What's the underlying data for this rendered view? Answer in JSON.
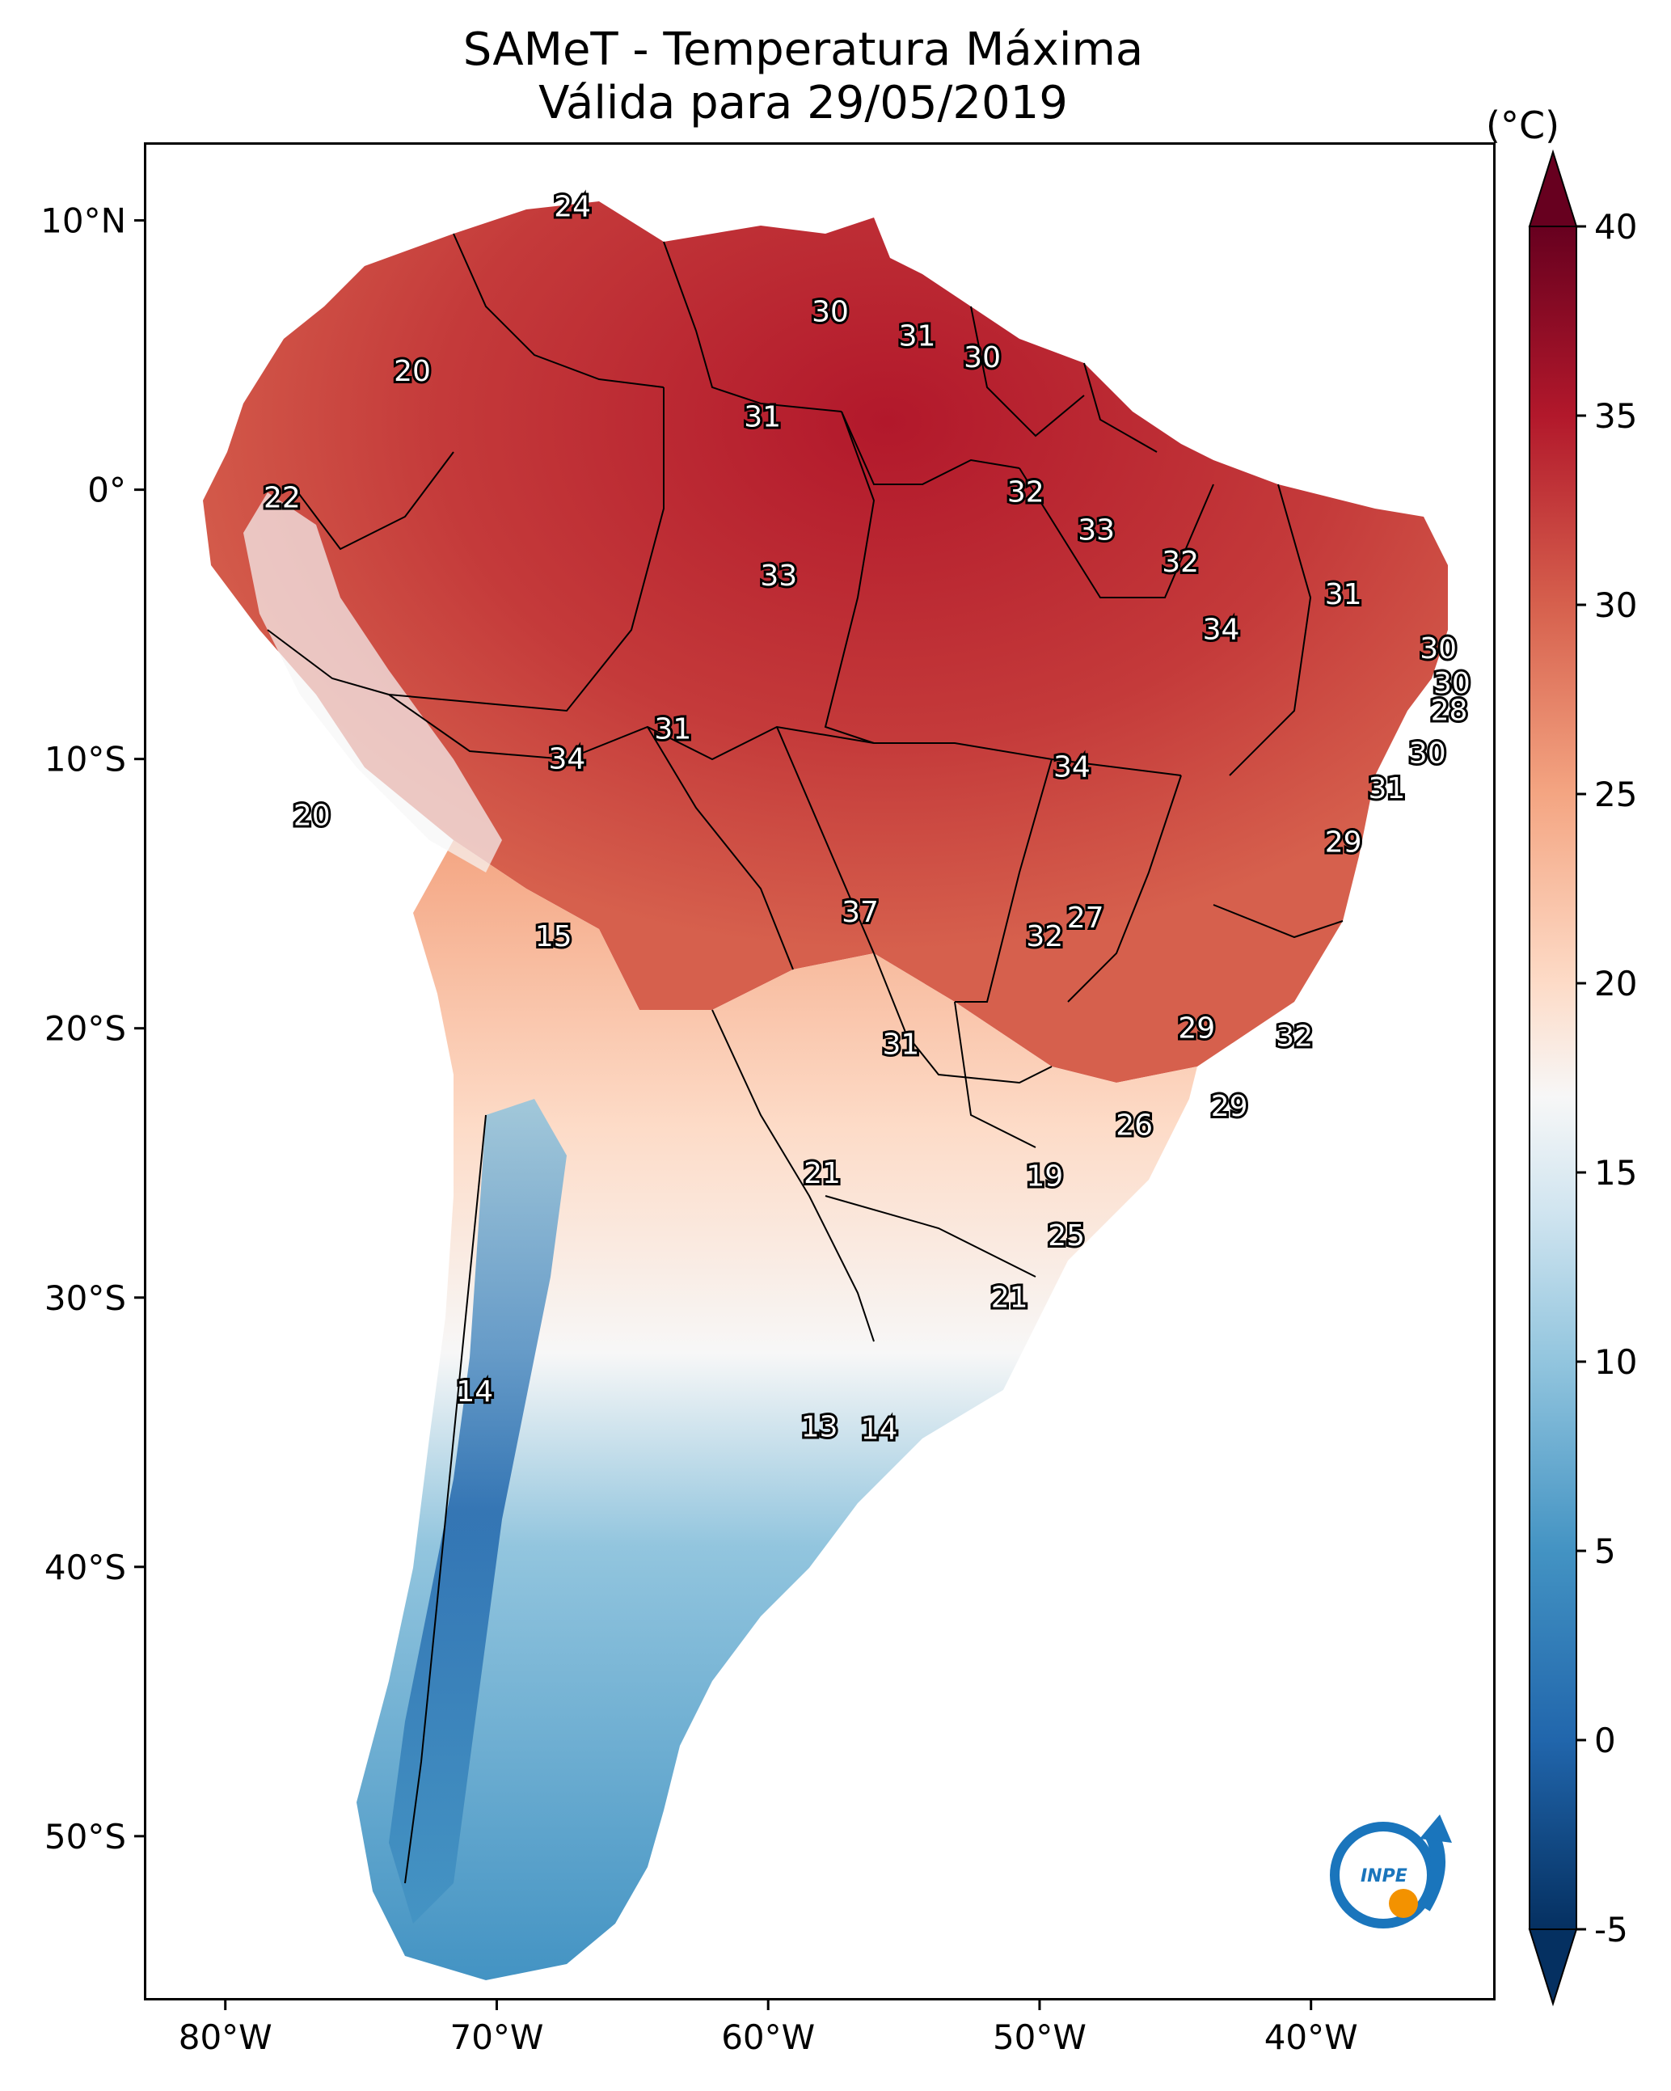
{
  "title": {
    "line1": "SAMeT - Temperatura Máxima",
    "line2": "Válida para 29/05/2019"
  },
  "map": {
    "lon_ticks": [
      "80°W",
      "70°W",
      "60°W",
      "50°W",
      "40°W"
    ],
    "lat_ticks": [
      "10°N",
      "0°",
      "10°S",
      "20°S",
      "30°S",
      "40°S",
      "50°S"
    ],
    "logo_text": "INPE",
    "station_labels": [
      {
        "value": "24",
        "lon": -67.3,
        "lat": 10.6
      },
      {
        "value": "30",
        "lon": -57.8,
        "lat": 6.7
      },
      {
        "value": "31",
        "lon": -54.6,
        "lat": 5.8
      },
      {
        "value": "30",
        "lon": -52.2,
        "lat": 5.0
      },
      {
        "value": "20",
        "lon": -73.2,
        "lat": 4.5
      },
      {
        "value": "31",
        "lon": -60.3,
        "lat": 2.8
      },
      {
        "value": "32",
        "lon": -50.6,
        "lat": 0.0
      },
      {
        "value": "22",
        "lon": -78.0,
        "lat": -0.2
      },
      {
        "value": "33",
        "lon": -48.0,
        "lat": -1.4
      },
      {
        "value": "32",
        "lon": -44.9,
        "lat": -2.6
      },
      {
        "value": "33",
        "lon": -59.7,
        "lat": -3.1
      },
      {
        "value": "31",
        "lon": -38.9,
        "lat": -3.8
      },
      {
        "value": "34",
        "lon": -43.4,
        "lat": -5.1
      },
      {
        "value": "30",
        "lon": -35.4,
        "lat": -5.8
      },
      {
        "value": "30",
        "lon": -34.9,
        "lat": -7.1
      },
      {
        "value": "28",
        "lon": -35.0,
        "lat": -8.1
      },
      {
        "value": "31",
        "lon": -63.6,
        "lat": -8.8
      },
      {
        "value": "30",
        "lon": -35.8,
        "lat": -9.7
      },
      {
        "value": "34",
        "lon": -67.5,
        "lat": -9.9
      },
      {
        "value": "34",
        "lon": -48.9,
        "lat": -10.2
      },
      {
        "value": "31",
        "lon": -37.3,
        "lat": -11.0
      },
      {
        "value": "20",
        "lon": -76.9,
        "lat": -12.0
      },
      {
        "value": "29",
        "lon": -38.9,
        "lat": -13.0
      },
      {
        "value": "37",
        "lon": -56.7,
        "lat": -15.6
      },
      {
        "value": "27",
        "lon": -48.4,
        "lat": -15.8
      },
      {
        "value": "15",
        "lon": -68.0,
        "lat": -16.5
      },
      {
        "value": "32",
        "lon": -49.9,
        "lat": -16.5
      },
      {
        "value": "29",
        "lon": -44.3,
        "lat": -19.9
      },
      {
        "value": "32",
        "lon": -40.7,
        "lat": -20.2
      },
      {
        "value": "31",
        "lon": -55.2,
        "lat": -20.5
      },
      {
        "value": "29",
        "lon": -43.1,
        "lat": -22.8
      },
      {
        "value": "26",
        "lon": -46.6,
        "lat": -23.5
      },
      {
        "value": "21",
        "lon": -58.1,
        "lat": -25.3
      },
      {
        "value": "19",
        "lon": -49.9,
        "lat": -25.4
      },
      {
        "value": "25",
        "lon": -49.1,
        "lat": -27.6
      },
      {
        "value": "21",
        "lon": -51.2,
        "lat": -29.9
      },
      {
        "value": "14",
        "lon": -70.9,
        "lat": -33.4
      },
      {
        "value": "13",
        "lon": -58.2,
        "lat": -34.7
      },
      {
        "value": "14",
        "lon": -56.0,
        "lat": -34.8
      }
    ]
  },
  "colorbar": {
    "unit": "(°C)",
    "ticks": [
      "40",
      "35",
      "30",
      "25",
      "20",
      "15",
      "10",
      "5",
      "0",
      "-5"
    ],
    "colors": {
      "c40": "#67001f",
      "c35": "#b2182b",
      "c30": "#d6604d",
      "c25": "#f4a582",
      "c20": "#fddbc7",
      "c17": "#f7f7f7",
      "c14": "#d1e5f0",
      "c10": "#92c5de",
      "c5": "#4393c3",
      "c0": "#2166ac",
      "cm5": "#053061"
    }
  }
}
